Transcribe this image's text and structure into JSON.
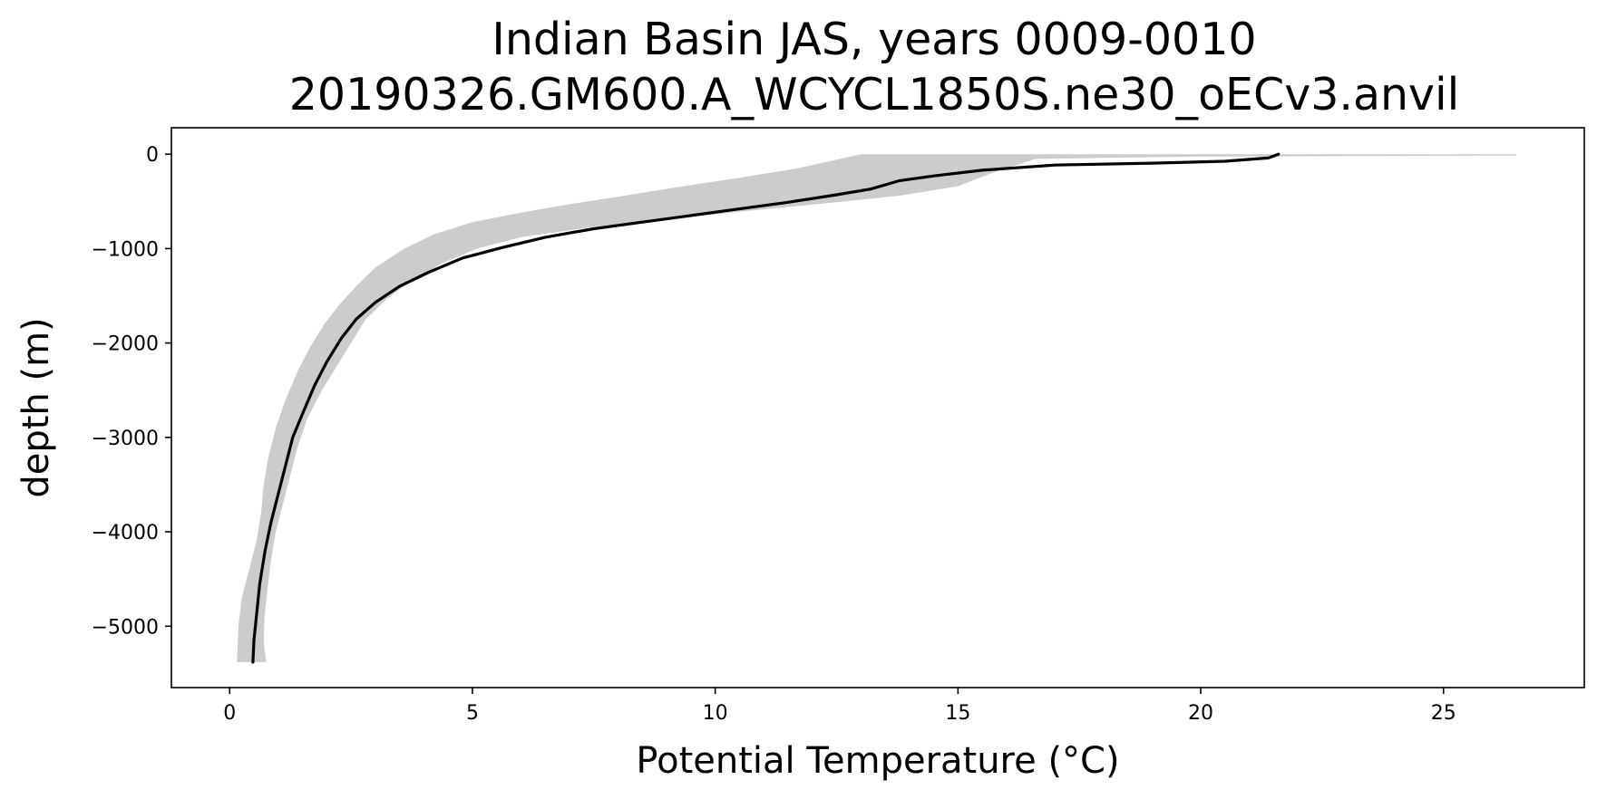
{
  "chart_data": {
    "type": "line",
    "title": "Indian Basin JAS, years 0009-0010",
    "subtitle": "20190326.GM600.A_WCYCL1850S.ne30_oECv3.anvil",
    "xlabel": "Potential Temperature (°C)",
    "ylabel": "depth (m)",
    "xlim": [
      -1.2,
      27.9
    ],
    "ylim": [
      -5650,
      280
    ],
    "xticks": [
      0,
      5,
      10,
      15,
      20,
      25
    ],
    "xtick_labels": [
      "0",
      "5",
      "10",
      "15",
      "20",
      "25"
    ],
    "yticks": [
      0,
      -1000,
      -2000,
      -3000,
      -4000,
      -5000
    ],
    "ytick_labels": [
      "0",
      "−1000",
      "−2000",
      "−3000",
      "−4000",
      "−5000"
    ],
    "grid": false,
    "colors": {
      "line": "#000000",
      "band": "#cccccc"
    },
    "series": [
      {
        "role": "mean",
        "points": [
          [
            21.6,
            0
          ],
          [
            21.4,
            -40
          ],
          [
            20.5,
            -75
          ],
          [
            19.0,
            -95
          ],
          [
            17.0,
            -115
          ],
          [
            15.5,
            -170
          ],
          [
            14.5,
            -230
          ],
          [
            13.8,
            -280
          ],
          [
            13.2,
            -370
          ],
          [
            12.5,
            -430
          ],
          [
            11.5,
            -510
          ],
          [
            10.5,
            -580
          ],
          [
            9.5,
            -650
          ],
          [
            8.5,
            -720
          ],
          [
            7.5,
            -790
          ],
          [
            6.5,
            -880
          ],
          [
            5.6,
            -990
          ],
          [
            4.8,
            -1100
          ],
          [
            4.1,
            -1250
          ],
          [
            3.5,
            -1400
          ],
          [
            3.0,
            -1570
          ],
          [
            2.6,
            -1750
          ],
          [
            2.3,
            -1950
          ],
          [
            2.0,
            -2200
          ],
          [
            1.75,
            -2450
          ],
          [
            1.5,
            -2750
          ],
          [
            1.3,
            -3000
          ],
          [
            1.15,
            -3300
          ],
          [
            1.0,
            -3600
          ],
          [
            0.85,
            -3900
          ],
          [
            0.73,
            -4200
          ],
          [
            0.62,
            -4550
          ],
          [
            0.55,
            -4900
          ],
          [
            0.5,
            -5150
          ],
          [
            0.48,
            -5380
          ]
        ]
      },
      {
        "role": "range",
        "upper": [
          [
            16.6,
            0
          ],
          [
            26.5,
            0
          ],
          [
            26.5,
            -15
          ],
          [
            20.0,
            -25
          ],
          [
            16.6,
            -50
          ],
          [
            15.7,
            -200
          ],
          [
            15.0,
            -340
          ],
          [
            13.8,
            -440
          ],
          [
            12.5,
            -510
          ],
          [
            11.5,
            -560
          ],
          [
            10.5,
            -610
          ],
          [
            9.0,
            -690
          ],
          [
            7.5,
            -770
          ],
          [
            6.0,
            -880
          ],
          [
            5.1,
            -1000
          ],
          [
            4.4,
            -1150
          ],
          [
            3.7,
            -1350
          ],
          [
            3.2,
            -1550
          ],
          [
            2.8,
            -1750
          ],
          [
            2.5,
            -2000
          ],
          [
            2.2,
            -2250
          ],
          [
            1.9,
            -2500
          ],
          [
            1.6,
            -2800
          ],
          [
            1.4,
            -3100
          ],
          [
            1.25,
            -3400
          ],
          [
            1.1,
            -3700
          ],
          [
            0.95,
            -4000
          ],
          [
            0.85,
            -4300
          ],
          [
            0.78,
            -4600
          ],
          [
            0.72,
            -4900
          ],
          [
            0.7,
            -5150
          ],
          [
            0.75,
            -5380
          ]
        ],
        "lower": [
          [
            13.0,
            0
          ],
          [
            11.7,
            -150
          ],
          [
            10.5,
            -250
          ],
          [
            9.2,
            -350
          ],
          [
            8.0,
            -450
          ],
          [
            7.0,
            -530
          ],
          [
            6.0,
            -620
          ],
          [
            5.0,
            -720
          ],
          [
            4.2,
            -850
          ],
          [
            3.6,
            -1000
          ],
          [
            3.0,
            -1200
          ],
          [
            2.6,
            -1400
          ],
          [
            2.25,
            -1600
          ],
          [
            1.95,
            -1800
          ],
          [
            1.65,
            -2050
          ],
          [
            1.4,
            -2300
          ],
          [
            1.15,
            -2600
          ],
          [
            0.95,
            -2900
          ],
          [
            0.8,
            -3200
          ],
          [
            0.7,
            -3500
          ],
          [
            0.65,
            -3800
          ],
          [
            0.55,
            -4100
          ],
          [
            0.4,
            -4400
          ],
          [
            0.25,
            -4700
          ],
          [
            0.18,
            -5000
          ],
          [
            0.15,
            -5380
          ]
        ]
      }
    ]
  }
}
